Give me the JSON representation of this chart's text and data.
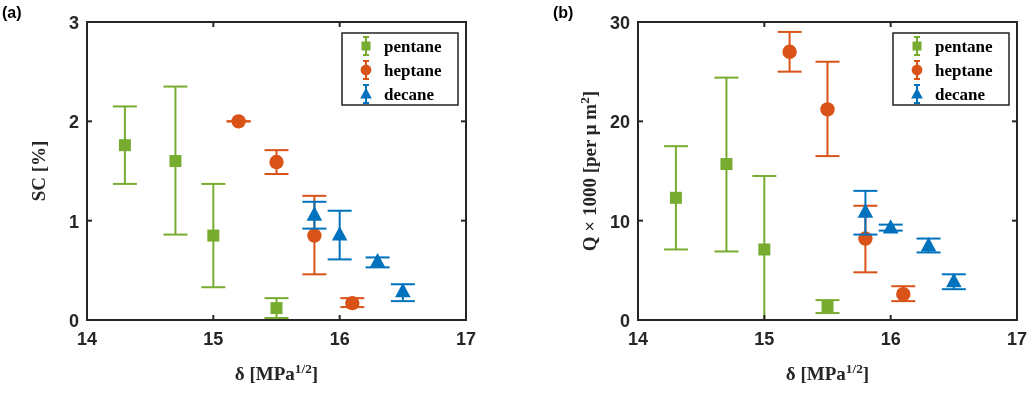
{
  "chart_data": [
    {
      "type": "scatter",
      "title": "(a)",
      "xlabel": "δ [MPa$^{1/2}$]",
      "ylabel": "SC [%]",
      "xlim": [
        14,
        17
      ],
      "xticks": [
        14,
        15,
        16,
        17
      ],
      "ylim": [
        0,
        3
      ],
      "yticks": [
        0,
        1,
        2,
        3
      ],
      "legend": "top right",
      "grid": false,
      "series": [
        {
          "name": "pentane",
          "color": "#77ac30",
          "marker": "square",
          "x": [
            14.3,
            14.7,
            15,
            15.5
          ],
          "values": [
            1.76,
            1.6,
            0.85,
            0.12
          ],
          "errors": [
            [
              1.37,
              2.15
            ],
            [
              0.86,
              2.35
            ],
            [
              0.33,
              1.37
            ],
            [
              0.02,
              0.22
            ]
          ]
        },
        {
          "name": "heptane",
          "color": "#d95319",
          "marker": "circle",
          "x": [
            15.2,
            15.5,
            15.8,
            16.1
          ],
          "values": [
            2.0,
            1.59,
            0.85,
            0.17
          ],
          "errors": [
            [
              2.0,
              2.0
            ],
            [
              1.47,
              1.71
            ],
            [
              0.46,
              1.25
            ],
            [
              0.13,
              0.22
            ]
          ]
        },
        {
          "name": "decane",
          "color": "#0072bd",
          "marker": "triangle",
          "x": [
            15.8,
            16,
            16.3,
            16.5
          ],
          "values": [
            1.06,
            0.86,
            0.59,
            0.29
          ],
          "errors": [
            [
              0.92,
              1.19
            ],
            [
              0.61,
              1.1
            ],
            [
              0.53,
              0.63
            ],
            [
              0.19,
              0.36
            ]
          ]
        }
      ]
    },
    {
      "type": "scatter",
      "title": "(b)",
      "xlabel": "δ [MPa$^{1/2}$]",
      "ylabel": "Q × 1000 [per μ m$^{2}$]",
      "xlim": [
        14,
        17
      ],
      "xticks": [
        14,
        15,
        16,
        17
      ],
      "ylim": [
        0,
        30
      ],
      "yticks": [
        0,
        10,
        20,
        30
      ],
      "legend": "top right",
      "grid": false,
      "series": [
        {
          "name": "pentane",
          "color": "#77ac30",
          "marker": "square",
          "x": [
            14.3,
            14.7,
            15,
            15.5
          ],
          "values": [
            12.3,
            15.7,
            7.1,
            1.4
          ],
          "errors": [
            [
              7.1,
              17.5
            ],
            [
              6.9,
              24.4
            ],
            [
              0,
              14.5
            ],
            [
              0.7,
              2.0
            ]
          ]
        },
        {
          "name": "heptane",
          "color": "#d95319",
          "marker": "circle",
          "x": [
            15.2,
            15.5,
            15.8,
            16.1
          ],
          "values": [
            27,
            21.2,
            8.2,
            2.6
          ],
          "errors": [
            [
              25,
              29
            ],
            [
              16.5,
              26
            ],
            [
              4.8,
              11.5
            ],
            [
              1.9,
              3.4
            ]
          ]
        },
        {
          "name": "decane",
          "color": "#0072bd",
          "marker": "triangle",
          "x": [
            15.8,
            16,
            16.3,
            16.5
          ],
          "values": [
            10.9,
            9.3,
            7.5,
            3.9
          ],
          "errors": [
            [
              8.6,
              13
            ],
            [
              9.0,
              9.6
            ],
            [
              6.8,
              8.2
            ],
            [
              3.1,
              4.6
            ]
          ]
        }
      ]
    }
  ]
}
